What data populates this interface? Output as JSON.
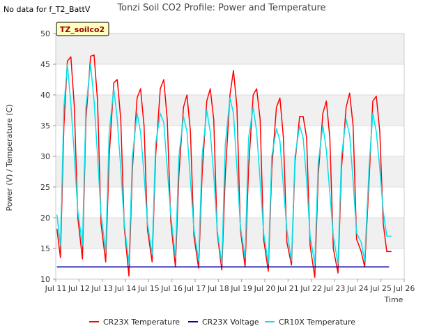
{
  "header": {
    "no_data_note": "No data for f_T2_BattV"
  },
  "site_tag": "TZ_soilco2",
  "chart_data": {
    "type": "line",
    "title": "Tonzi Soil CO2 Profile: Power and Temperature",
    "xlabel": "Time",
    "ylabel": "Power (V) / Temperature (C)",
    "ylim": [
      10,
      50
    ],
    "xlim": [
      11,
      26
    ],
    "yticks": [
      10,
      15,
      20,
      25,
      30,
      35,
      40,
      45,
      50
    ],
    "xticks": [
      11,
      12,
      13,
      14,
      15,
      16,
      17,
      18,
      19,
      20,
      21,
      22,
      23,
      24,
      25,
      26
    ],
    "xtick_labels": [
      "Jul 11",
      "Jul 12",
      "Jul 13",
      "Jul 14",
      "Jul 15",
      "Jul 16",
      "Jul 17",
      "Jul 18",
      "Jul 19",
      "Jul 20",
      "Jul 21",
      "Jul 22",
      "Jul 23",
      "Jul 24",
      "Jul 25",
      "Jul 26"
    ],
    "grid": true,
    "background_bands": true,
    "legend_position": "bottom",
    "series": [
      {
        "name": "CR23X Temperature",
        "color": "#ff0000",
        "x": [
          11.05,
          11.2,
          11.35,
          11.5,
          11.65,
          11.8,
          11.95,
          12.15,
          12.3,
          12.5,
          12.65,
          12.8,
          12.95,
          13.15,
          13.3,
          13.5,
          13.65,
          13.8,
          13.95,
          14.15,
          14.3,
          14.5,
          14.65,
          14.8,
          14.95,
          15.15,
          15.3,
          15.5,
          15.65,
          15.8,
          15.95,
          16.15,
          16.3,
          16.5,
          16.65,
          16.8,
          16.95,
          17.15,
          17.3,
          17.5,
          17.65,
          17.8,
          17.95,
          18.15,
          18.3,
          18.5,
          18.65,
          18.8,
          18.95,
          19.15,
          19.3,
          19.5,
          19.65,
          19.8,
          19.95,
          20.15,
          20.3,
          20.5,
          20.65,
          20.8,
          20.95,
          21.15,
          21.3,
          21.5,
          21.65,
          21.8,
          21.95,
          22.15,
          22.3,
          22.5,
          22.65,
          22.8,
          22.95,
          23.15,
          23.3,
          23.5,
          23.65,
          23.8,
          23.95,
          24.15,
          24.3,
          24.5,
          24.65,
          24.8,
          24.95,
          25.1,
          25.25,
          25.45
        ],
        "y": [
          18.2,
          13.5,
          35.0,
          45.5,
          46.2,
          38.0,
          20.0,
          13.3,
          36.0,
          46.3,
          46.5,
          39.0,
          19.0,
          12.8,
          30.0,
          42.0,
          42.5,
          36.0,
          18.5,
          10.5,
          28.0,
          39.5,
          41.0,
          35.0,
          18.0,
          12.8,
          30.0,
          41.0,
          42.5,
          36.0,
          19.5,
          12.0,
          27.0,
          38.0,
          40.0,
          34.0,
          17.0,
          11.8,
          27.0,
          39.0,
          41.0,
          36.0,
          17.5,
          11.5,
          27.0,
          40.0,
          44.0,
          38.0,
          18.0,
          12.0,
          28.0,
          40.0,
          41.0,
          36.0,
          16.5,
          11.3,
          28.0,
          38.0,
          39.5,
          33.0,
          16.0,
          12.3,
          29.0,
          36.5,
          36.5,
          33.0,
          15.5,
          10.3,
          27.0,
          37.0,
          39.0,
          33.0,
          15.0,
          11.0,
          28.0,
          38.0,
          40.3,
          35.0,
          16.5,
          14.5,
          12.0,
          27.0,
          39.0,
          39.8,
          34.0,
          19.0,
          14.5,
          14.5
        ]
      },
      {
        "name": "CR23X Voltage",
        "color": "#0000aa",
        "x": [
          11.05,
          25.35
        ],
        "y": [
          12.0,
          12.0
        ]
      },
      {
        "name": "CR10X Temperature",
        "color": "#00e5ee",
        "x": [
          11.05,
          11.2,
          11.35,
          11.5,
          11.65,
          11.8,
          11.95,
          12.15,
          12.3,
          12.5,
          12.65,
          12.8,
          12.95,
          13.15,
          13.3,
          13.5,
          13.65,
          13.8,
          13.95,
          14.15,
          14.3,
          14.5,
          14.65,
          14.8,
          14.95,
          15.15,
          15.3,
          15.5,
          15.65,
          15.8,
          15.95,
          16.15,
          16.3,
          16.5,
          16.65,
          16.8,
          16.95,
          17.15,
          17.3,
          17.5,
          17.65,
          17.8,
          17.95,
          18.15,
          18.3,
          18.5,
          18.65,
          18.8,
          18.95,
          19.15,
          19.3,
          19.5,
          19.65,
          19.8,
          19.95,
          20.15,
          20.3,
          20.5,
          20.65,
          20.8,
          20.95,
          21.15,
          21.3,
          21.5,
          21.65,
          21.8,
          21.95,
          22.15,
          22.3,
          22.5,
          22.65,
          22.8,
          22.95,
          23.15,
          23.3,
          23.5,
          23.65,
          23.8,
          23.95,
          24.15,
          24.3,
          24.5,
          24.65,
          24.8,
          24.95,
          25.1,
          25.25,
          25.45
        ],
        "y": [
          20.5,
          15.5,
          38.0,
          45.0,
          38.5,
          30.0,
          21.0,
          15.5,
          38.0,
          45.0,
          39.0,
          30.0,
          20.5,
          14.5,
          34.0,
          41.0,
          36.0,
          28.0,
          19.0,
          12.5,
          30.0,
          37.0,
          34.0,
          27.0,
          19.0,
          14.0,
          32.0,
          37.0,
          35.5,
          28.0,
          20.5,
          13.5,
          30.0,
          36.5,
          34.0,
          26.0,
          18.0,
          13.0,
          30.0,
          37.5,
          34.0,
          27.0,
          18.0,
          12.5,
          32.0,
          39.5,
          37.0,
          28.0,
          18.5,
          13.5,
          33.0,
          38.0,
          34.0,
          26.0,
          17.5,
          12.5,
          30.0,
          34.5,
          32.5,
          25.0,
          18.0,
          13.0,
          30.0,
          35.0,
          33.0,
          26.0,
          17.0,
          12.5,
          29.0,
          35.0,
          31.0,
          24.0,
          17.0,
          12.5,
          30.0,
          36.0,
          33.5,
          26.0,
          17.5,
          16.0,
          13.0,
          29.0,
          37.0,
          34.0,
          28.0,
          21.0,
          17.0,
          17.0
        ]
      }
    ]
  }
}
